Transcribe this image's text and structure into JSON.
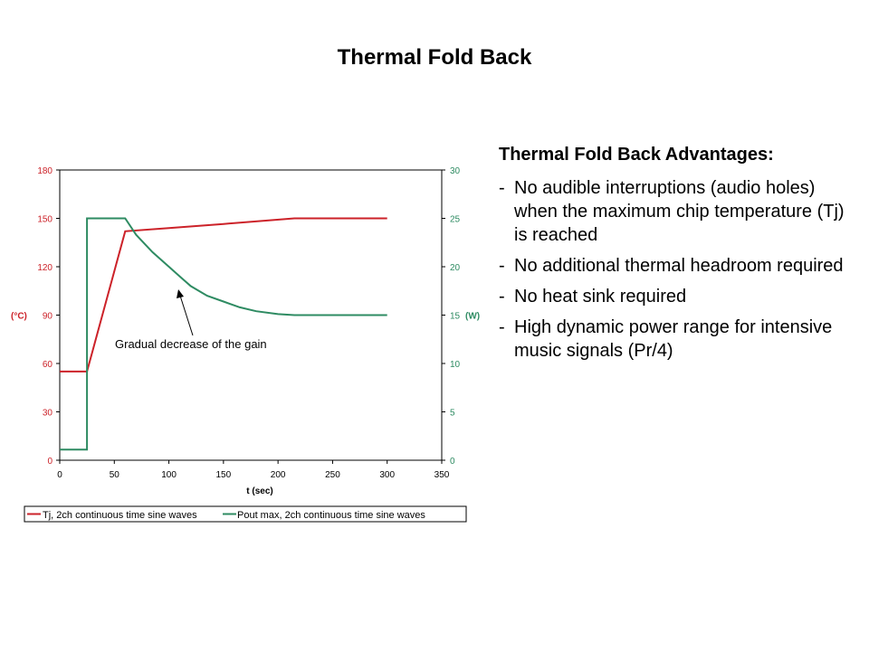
{
  "slide": {
    "title": "Thermal Fold Back",
    "advantages": {
      "heading": "Thermal Fold Back Advantages:",
      "items": [
        "No audible interruptions (audio holes) when the maximum chip temperature (Tj) is reached",
        "No additional thermal headroom required",
        "No heat sink required",
        "High dynamic power range for intensive music signals (Pr/4)"
      ],
      "bullet": "-"
    }
  },
  "chart_data": {
    "type": "line",
    "title": "",
    "xlabel": "t (sec)",
    "ylabel_left": "(°C)",
    "ylabel_right": "(W)",
    "xlim": [
      0,
      350
    ],
    "ylim_left": [
      0,
      180
    ],
    "ylim_right": [
      0,
      30
    ],
    "x_ticks": [
      0,
      50,
      100,
      150,
      200,
      250,
      300,
      350
    ],
    "y_left_ticks": [
      0,
      30,
      60,
      90,
      120,
      150,
      180
    ],
    "y_right_ticks": [
      0,
      5,
      10,
      15,
      20,
      25,
      30
    ],
    "grid": false,
    "legend_position": "bottom",
    "annotation": "Gradual decrease of the gain",
    "series": [
      {
        "name": "Tj, 2ch continuous time sine waves",
        "axis": "left",
        "color": "#cc2229",
        "points": [
          [
            0,
            55
          ],
          [
            25,
            55
          ],
          [
            60,
            142
          ],
          [
            100,
            144
          ],
          [
            150,
            146.5
          ],
          [
            215,
            150
          ],
          [
            300,
            150
          ]
        ]
      },
      {
        "name": "Pout max, 2ch continuous time sine waves",
        "axis": "right",
        "color": "#2e8b62",
        "points": [
          [
            0,
            1.1
          ],
          [
            25,
            1.1
          ],
          [
            25,
            25
          ],
          [
            60,
            25
          ],
          [
            70,
            23.3
          ],
          [
            85,
            21.5
          ],
          [
            100,
            20
          ],
          [
            110,
            19
          ],
          [
            120,
            18
          ],
          [
            135,
            17
          ],
          [
            150,
            16.4
          ],
          [
            165,
            15.8
          ],
          [
            180,
            15.4
          ],
          [
            200,
            15.1
          ],
          [
            215,
            15
          ],
          [
            300,
            15
          ]
        ]
      }
    ]
  }
}
